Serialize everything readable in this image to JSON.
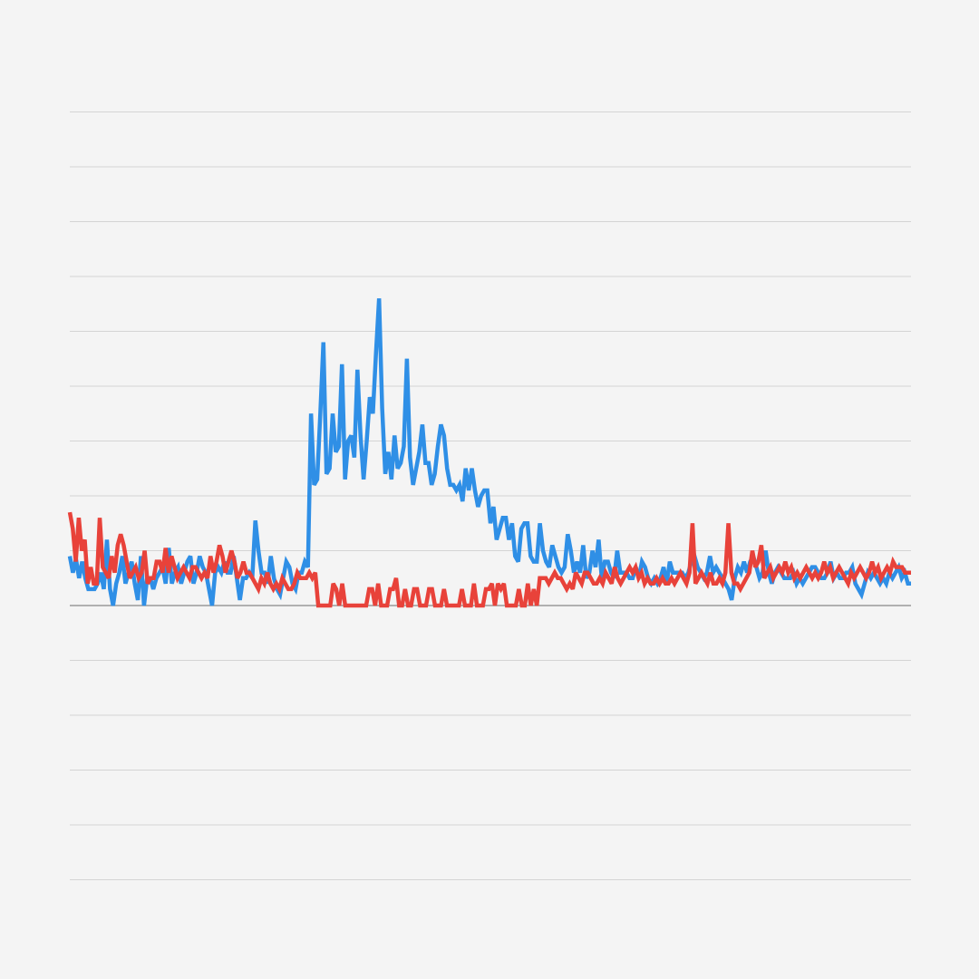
{
  "chart_data": {
    "type": "line",
    "title": "",
    "xlabel": "",
    "ylabel": "",
    "grid": true,
    "legend": "none",
    "gridlines_above_baseline": [
      0,
      1,
      2,
      3,
      4,
      5,
      6,
      7,
      8,
      9
    ],
    "gridlines_below_baseline": [
      1,
      2,
      3,
      4,
      5
    ],
    "ylim": [
      0,
      9
    ],
    "series": [
      {
        "color": "#2f8fe6",
        "values": [
          0.9,
          0.6,
          0.85,
          0.5,
          0.8,
          0.5,
          0.3,
          0.3,
          0.3,
          0.4,
          0.6,
          0.3,
          1.2,
          0.3,
          0,
          0.4,
          0.6,
          0.9,
          0.4,
          0.6,
          0.8,
          0.4,
          0.1,
          0.9,
          0,
          0.5,
          0.5,
          0.3,
          0.5,
          0.6,
          0.7,
          0.4,
          1.05,
          0.4,
          0.6,
          0.7,
          0.4,
          0.6,
          0.8,
          0.9,
          0.4,
          0.6,
          0.9,
          0.7,
          0.6,
          0.3,
          0,
          0.6,
          0.7,
          0.6,
          0.8,
          0.6,
          0.6,
          0.9,
          0.5,
          0.1,
          0.5,
          0.5,
          0.6,
          0.5,
          1.55,
          1,
          0.6,
          0.6,
          0.4,
          0.9,
          0.5,
          0.3,
          0.2,
          0.5,
          0.8,
          0.7,
          0.4,
          0.3,
          0.6,
          0.6,
          0.8,
          0.7,
          3.5,
          2.2,
          2.3,
          3.5,
          4.8,
          2.4,
          2.5,
          3.5,
          2.8,
          2.9,
          4.4,
          2.3,
          3,
          3.1,
          2.7,
          4.3,
          3.1,
          2.3,
          3,
          3.8,
          3.5,
          4.6,
          5.6,
          3.6,
          2.4,
          2.8,
          2.3,
          3.1,
          2.5,
          2.6,
          2.9,
          4.5,
          2.7,
          2.2,
          2.5,
          2.8,
          3.3,
          2.6,
          2.6,
          2.2,
          2.4,
          2.9,
          3.3,
          3.1,
          2.5,
          2.2,
          2.2,
          2.1,
          2.2,
          1.9,
          2.5,
          2.1,
          2.5,
          2.1,
          1.8,
          2,
          2.1,
          2.1,
          1.5,
          1.8,
          1.2,
          1.4,
          1.6,
          1.6,
          1.2,
          1.5,
          0.9,
          0.8,
          1.4,
          1.5,
          1.5,
          0.9,
          0.8,
          0.8,
          1.5,
          1,
          0.8,
          0.7,
          1.1,
          0.9,
          0.7,
          0.6,
          0.7,
          1.3,
          1,
          0.6,
          0.8,
          0.6,
          1.1,
          0.5,
          0.6,
          1,
          0.7,
          1.2,
          0.5,
          0.8,
          0.8,
          0.6,
          0.5,
          1,
          0.6,
          0.6,
          0.6,
          0.5,
          0.5,
          0.7,
          0.5,
          0.8,
          0.7,
          0.5,
          0.4,
          0.5,
          0.4,
          0.5,
          0.7,
          0.4,
          0.8,
          0.6,
          0.6,
          0.6,
          0.6,
          0.5,
          0.6,
          0.8,
          0.9,
          0.7,
          0.6,
          0.5,
          0.6,
          0.9,
          0.6,
          0.7,
          0.6,
          0.5,
          0.4,
          0.3,
          0.1,
          0.5,
          0.7,
          0.6,
          0.8,
          0.6,
          0.8,
          0.9,
          0.7,
          0.5,
          0.6,
          1,
          0.6,
          0.4,
          0.6,
          0.7,
          0.6,
          0.5,
          0.5,
          0.5,
          0.6,
          0.4,
          0.5,
          0.4,
          0.5,
          0.6,
          0.7,
          0.7,
          0.6,
          0.5,
          0.5,
          0.6,
          0.8,
          0.5,
          0.6,
          0.5,
          0.5,
          0.6,
          0.6,
          0.7,
          0.4,
          0.3,
          0.2,
          0.4,
          0.6,
          0.5,
          0.6,
          0.5,
          0.4,
          0.5,
          0.4,
          0.6,
          0.5,
          0.6,
          0.7,
          0.5,
          0.6,
          0.4,
          0.4
        ]
      },
      {
        "color": "#e8423a",
        "values": [
          1.7,
          1.4,
          0.8,
          1.6,
          1,
          1.2,
          0.4,
          0.7,
          0.4,
          0.4,
          1.6,
          0.7,
          0.6,
          0.5,
          0.9,
          0.6,
          1.1,
          1.3,
          1.1,
          0.8,
          0.5,
          0.6,
          0.7,
          0.5,
          0.6,
          1,
          0.4,
          0.5,
          0.5,
          0.8,
          0.8,
          0.6,
          1.05,
          0.6,
          0.9,
          0.7,
          0.5,
          0.6,
          0.7,
          0.6,
          0.5,
          0.7,
          0.7,
          0.6,
          0.5,
          0.6,
          0.5,
          0.9,
          0.6,
          0.8,
          1.1,
          0.9,
          0.6,
          0.8,
          1,
          0.8,
          0.5,
          0.6,
          0.8,
          0.6,
          0.6,
          0.5,
          0.4,
          0.3,
          0.5,
          0.4,
          0.6,
          0.4,
          0.3,
          0.4,
          0.3,
          0.5,
          0.4,
          0.3,
          0.3,
          0.4,
          0.6,
          0.5,
          0.5,
          0.5,
          0.6,
          0.5,
          0.6,
          0,
          0,
          0,
          0,
          0,
          0.4,
          0.3,
          0,
          0.4,
          0,
          0,
          0,
          0,
          0,
          0,
          0,
          0,
          0.3,
          0.3,
          0,
          0.4,
          0,
          0,
          0,
          0.3,
          0.3,
          0.5,
          0,
          0,
          0.3,
          0,
          0,
          0.3,
          0.3,
          0,
          0,
          0,
          0.3,
          0.3,
          0,
          0,
          0,
          0.3,
          0,
          0,
          0,
          0,
          0,
          0.3,
          0,
          0,
          0,
          0.4,
          0,
          0,
          0,
          0.3,
          0.3,
          0.4,
          0,
          0.4,
          0.3,
          0.4,
          0,
          0,
          0,
          0,
          0.3,
          0,
          0,
          0.4,
          0,
          0.3,
          0,
          0.5,
          0.5,
          0.5,
          0.4,
          0.5,
          0.6,
          0.5,
          0.5,
          0.4,
          0.3,
          0.4,
          0.3,
          0.6,
          0.5,
          0.4,
          0.6,
          0.6,
          0.5,
          0.4,
          0.4,
          0.5,
          0.4,
          0.6,
          0.5,
          0.4,
          0.7,
          0.5,
          0.4,
          0.5,
          0.6,
          0.7,
          0.6,
          0.7,
          0.5,
          0.6,
          0.4,
          0.5,
          0.4,
          0.4,
          0.5,
          0.4,
          0.5,
          0.4,
          0.4,
          0.5,
          0.4,
          0.5,
          0.6,
          0.5,
          0.4,
          0.6,
          1.5,
          0.4,
          0.5,
          0.6,
          0.5,
          0.4,
          0.6,
          0.4,
          0.4,
          0.5,
          0.4,
          0.6,
          1.5,
          0.6,
          0.4,
          0.4,
          0.3,
          0.4,
          0.5,
          0.6,
          1,
          0.7,
          0.8,
          1.1,
          0.5,
          0.6,
          0.7,
          0.5,
          0.6,
          0.7,
          0.6,
          0.8,
          0.6,
          0.7,
          0.5,
          0.6,
          0.5,
          0.6,
          0.7,
          0.6,
          0.5,
          0.6,
          0.5,
          0.6,
          0.8,
          0.6,
          0.7,
          0.5,
          0.6,
          0.7,
          0.6,
          0.5,
          0.4,
          0.6,
          0.5,
          0.6,
          0.7,
          0.6,
          0.5,
          0.6,
          0.8,
          0.6,
          0.7,
          0.5,
          0.6,
          0.7,
          0.6,
          0.8,
          0.7,
          0.7,
          0.7,
          0.6,
          0.6,
          0.6
        ]
      }
    ]
  }
}
